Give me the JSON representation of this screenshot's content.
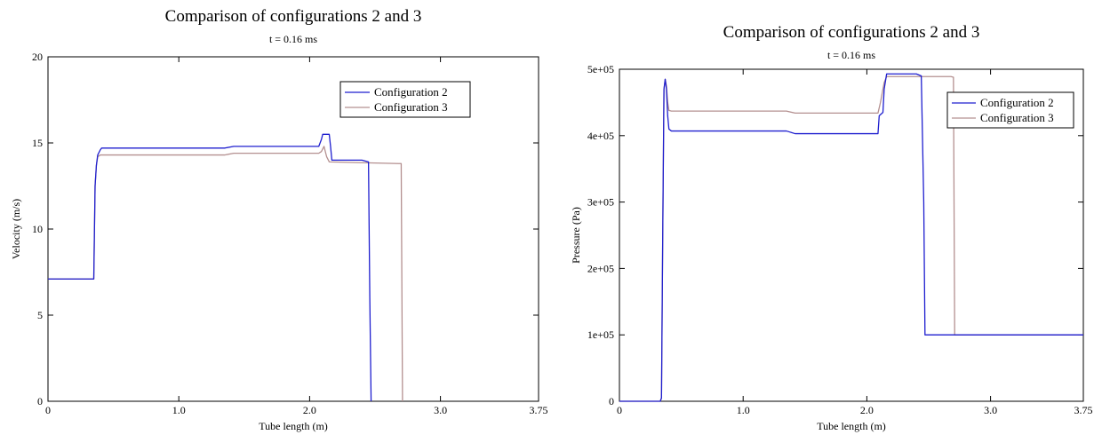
{
  "colors": {
    "config2": "#1f1fcf",
    "config3": "#b49090",
    "axis": "#000000"
  },
  "chart_data": [
    {
      "type": "line",
      "title": "Comparison of configurations 2 and 3",
      "subtitle": "t = 0.16 ms",
      "xlabel": "Tube length (m)",
      "ylabel": "Velocity (m/s)",
      "xlim": [
        0,
        3.75
      ],
      "ylim": [
        0,
        20
      ],
      "xticks": [
        0,
        1.0,
        2.0,
        3.0,
        3.75
      ],
      "xtick_labels": [
        "0",
        "1.0",
        "2.0",
        "3.0",
        "3.75"
      ],
      "yticks": [
        0,
        5,
        10,
        15,
        20
      ],
      "ytick_labels": [
        "0",
        "5",
        "10",
        "15",
        "20"
      ],
      "legend": {
        "position": "top-right",
        "entries": [
          "Configuration 2",
          "Configuration 3"
        ]
      },
      "grid": false,
      "series": [
        {
          "name": "Configuration 2",
          "color": "#1f1fcf",
          "x": [
            0,
            0.35,
            0.36,
            0.37,
            0.38,
            0.4,
            0.41,
            1.35,
            1.42,
            2.07,
            2.09,
            2.1,
            2.15,
            2.16,
            2.17,
            2.4,
            2.45,
            2.46,
            2.47
          ],
          "y": [
            7.1,
            7.1,
            12.5,
            13.7,
            14.3,
            14.6,
            14.7,
            14.7,
            14.8,
            14.8,
            15.2,
            15.5,
            15.5,
            14.8,
            14.0,
            14.0,
            13.9,
            6.0,
            0
          ]
        },
        {
          "name": "Configuration 3",
          "color": "#b49090",
          "x": [
            0,
            0.35,
            0.36,
            0.37,
            0.38,
            0.4,
            1.35,
            1.42,
            2.07,
            2.09,
            2.11,
            2.13,
            2.15,
            2.68,
            2.7,
            2.71
          ],
          "y": [
            7.1,
            7.1,
            12.5,
            13.7,
            14.2,
            14.3,
            14.3,
            14.4,
            14.4,
            14.5,
            14.8,
            14.2,
            13.9,
            13.8,
            13.8,
            0
          ]
        }
      ]
    },
    {
      "type": "line",
      "title": "Comparison of configurations 2 and 3",
      "subtitle": "t = 0.16 ms",
      "xlabel": "Tube length (m)",
      "ylabel": "Pressure (Pa)",
      "xlim": [
        0,
        3.75
      ],
      "ylim": [
        0,
        500000
      ],
      "xticks": [
        0,
        1.0,
        2.0,
        3.0,
        3.75
      ],
      "xtick_labels": [
        "0",
        "1.0",
        "2.0",
        "3.0",
        "3.75"
      ],
      "yticks": [
        0,
        100000,
        200000,
        300000,
        400000,
        500000
      ],
      "ytick_labels": [
        "0",
        "1e+05",
        "2e+05",
        "3e+05",
        "4e+05",
        "5e+05"
      ],
      "legend": {
        "position": "top-right",
        "entries": [
          "Configuration 2",
          "Configuration 3"
        ]
      },
      "grid": false,
      "series": [
        {
          "name": "Configuration 2",
          "color": "#1f1fcf",
          "x": [
            0,
            0.33,
            0.34,
            0.35,
            0.36,
            0.37,
            0.38,
            0.39,
            0.4,
            0.42,
            1.35,
            1.42,
            2.09,
            2.1,
            2.13,
            2.14,
            2.16,
            2.4,
            2.44,
            2.46,
            2.47,
            3.75
          ],
          "y": [
            0,
            0,
            5000,
            250000,
            470000,
            485000,
            470000,
            430000,
            410000,
            407000,
            407000,
            403000,
            403000,
            430000,
            435000,
            470000,
            493000,
            493000,
            490000,
            300000,
            100000,
            100000
          ]
        },
        {
          "name": "Configuration 3",
          "color": "#b49090",
          "x": [
            0,
            0.33,
            0.34,
            0.35,
            0.36,
            0.37,
            0.38,
            0.39,
            0.4,
            0.42,
            1.35,
            1.42,
            2.09,
            2.11,
            2.13,
            2.14,
            2.16,
            2.68,
            2.7,
            2.71,
            3.75
          ],
          "y": [
            0,
            0,
            5000,
            250000,
            470000,
            485000,
            475000,
            450000,
            438000,
            437000,
            437000,
            434000,
            434000,
            450000,
            470000,
            480000,
            489000,
            489000,
            488000,
            100000,
            100000
          ]
        }
      ]
    }
  ]
}
